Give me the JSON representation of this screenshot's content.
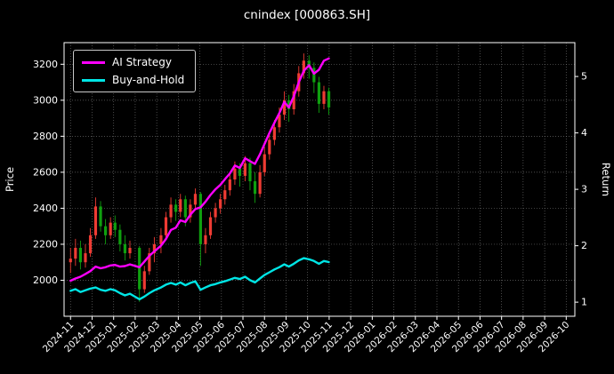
{
  "title": "cnindex [000863.SH]",
  "colors": {
    "background": "#000000",
    "text": "#ffffff",
    "grid": "#8a8a8a",
    "up": "#ef3b33",
    "down": "#0fa00f",
    "ai_line": "#ff00ff",
    "bh_line": "#00e5e5"
  },
  "chart_data": {
    "type": "candlestick+line",
    "title": "cnindex [000863.SH]",
    "ylabel_left": "Price",
    "ylabel_right": "Return",
    "grid": true,
    "legend_position": "upper-left",
    "ylim_left": [
      1800,
      3320
    ],
    "ylim_right": [
      0.75,
      5.6
    ],
    "y_ticks_left": [
      2000,
      2200,
      2400,
      2600,
      2800,
      3000,
      3200
    ],
    "y_ticks_right": [
      1,
      2,
      3,
      4,
      5
    ],
    "x_ticks": [
      "2024-11",
      "2024-12",
      "2025-01",
      "2025-02",
      "2025-03",
      "2025-04",
      "2025-05",
      "2025-06",
      "2025-07",
      "2025-08",
      "2025-09",
      "2025-10",
      "2025-11",
      "2025-12",
      "2026-01",
      "2026-02",
      "2026-03",
      "2026-04",
      "2026-05",
      "2026-06",
      "2026-07",
      "2026-08",
      "2026-09",
      "2026-10"
    ],
    "candles": {
      "axis": "left",
      "dates": [
        "2024-11-01",
        "2024-11-08",
        "2024-11-15",
        "2024-11-22",
        "2024-11-29",
        "2024-12-06",
        "2024-12-13",
        "2024-12-20",
        "2024-12-27",
        "2025-01-03",
        "2025-01-10",
        "2025-01-17",
        "2025-01-24",
        "2025-02-07",
        "2025-02-14",
        "2025-02-21",
        "2025-02-28",
        "2025-03-07",
        "2025-03-14",
        "2025-03-21",
        "2025-03-28",
        "2025-04-04",
        "2025-04-11",
        "2025-04-18",
        "2025-04-25",
        "2025-05-02",
        "2025-05-09",
        "2025-05-16",
        "2025-05-23",
        "2025-05-30",
        "2025-06-06",
        "2025-06-13",
        "2025-06-20",
        "2025-06-27",
        "2025-07-04",
        "2025-07-11",
        "2025-07-18",
        "2025-07-25",
        "2025-08-01",
        "2025-08-08",
        "2025-08-15",
        "2025-08-22",
        "2025-08-29",
        "2025-09-05",
        "2025-09-12",
        "2025-09-19",
        "2025-09-26",
        "2025-10-03",
        "2025-10-10",
        "2025-10-17",
        "2025-10-24",
        "2025-10-31"
      ],
      "open": [
        2100,
        2120,
        2180,
        2100,
        2150,
        2250,
        2410,
        2300,
        2250,
        2320,
        2280,
        2200,
        2150,
        2180,
        1950,
        2050,
        2150,
        2200,
        2250,
        2350,
        2420,
        2380,
        2450,
        2350,
        2420,
        2480,
        2200,
        2250,
        2350,
        2400,
        2450,
        2500,
        2560,
        2620,
        2580,
        2650,
        2550,
        2480,
        2600,
        2700,
        2780,
        2850,
        2920,
        3000,
        2950,
        3050,
        3150,
        3220,
        3180,
        3100,
        2980,
        3050
      ],
      "high": [
        2180,
        2230,
        2220,
        2200,
        2290,
        2460,
        2440,
        2340,
        2350,
        2360,
        2310,
        2250,
        2220,
        2190,
        2080,
        2180,
        2240,
        2290,
        2380,
        2460,
        2450,
        2480,
        2470,
        2450,
        2510,
        2490,
        2290,
        2380,
        2430,
        2480,
        2530,
        2590,
        2660,
        2650,
        2690,
        2680,
        2600,
        2640,
        2740,
        2820,
        2890,
        2960,
        3050,
        3030,
        3090,
        3190,
        3260,
        3250,
        3210,
        3130,
        3080,
        3070
      ],
      "low": [
        2040,
        2080,
        2060,
        2070,
        2130,
        2230,
        2270,
        2200,
        2230,
        2240,
        2160,
        2110,
        2120,
        1880,
        1930,
        2030,
        2100,
        2150,
        2230,
        2320,
        2330,
        2350,
        2300,
        2320,
        2390,
        2080,
        2150,
        2230,
        2320,
        2370,
        2420,
        2470,
        2530,
        2520,
        2550,
        2500,
        2430,
        2460,
        2580,
        2670,
        2750,
        2820,
        2890,
        2880,
        2920,
        3020,
        3120,
        3120,
        3040,
        2930,
        2950,
        2920
      ],
      "close": [
        2120,
        2180,
        2100,
        2150,
        2250,
        2410,
        2300,
        2250,
        2320,
        2280,
        2200,
        2150,
        2180,
        1950,
        2050,
        2150,
        2200,
        2250,
        2350,
        2420,
        2380,
        2450,
        2350,
        2420,
        2480,
        2200,
        2250,
        2350,
        2400,
        2450,
        2500,
        2560,
        2620,
        2580,
        2650,
        2550,
        2480,
        2600,
        2700,
        2780,
        2850,
        2920,
        3000,
        2950,
        3050,
        3150,
        3220,
        3180,
        3100,
        2980,
        3050,
        2960
      ]
    },
    "series": [
      {
        "name": "AI Strategy",
        "axis": "right",
        "color": "#ff00ff",
        "dates": [
          "2024-11-01",
          "2024-11-08",
          "2024-11-15",
          "2024-11-22",
          "2024-11-29",
          "2024-12-06",
          "2024-12-13",
          "2024-12-20",
          "2024-12-27",
          "2025-01-03",
          "2025-01-10",
          "2025-01-17",
          "2025-01-24",
          "2025-02-07",
          "2025-02-14",
          "2025-02-21",
          "2025-02-28",
          "2025-03-07",
          "2025-03-14",
          "2025-03-21",
          "2025-03-28",
          "2025-04-04",
          "2025-04-11",
          "2025-04-18",
          "2025-04-25",
          "2025-05-02",
          "2025-05-09",
          "2025-05-16",
          "2025-05-23",
          "2025-05-30",
          "2025-06-06",
          "2025-06-13",
          "2025-06-20",
          "2025-06-27",
          "2025-07-04",
          "2025-07-11",
          "2025-07-18",
          "2025-07-25",
          "2025-08-01",
          "2025-08-08",
          "2025-08-15",
          "2025-08-22",
          "2025-08-29",
          "2025-09-05",
          "2025-09-12",
          "2025-09-19",
          "2025-09-26",
          "2025-10-03",
          "2025-10-10",
          "2025-10-17",
          "2025-10-24",
          "2025-10-31"
        ],
        "values": [
          1.38,
          1.42,
          1.45,
          1.5,
          1.55,
          1.63,
          1.6,
          1.62,
          1.65,
          1.66,
          1.63,
          1.64,
          1.67,
          1.62,
          1.72,
          1.82,
          1.9,
          2.0,
          2.12,
          2.28,
          2.32,
          2.45,
          2.42,
          2.55,
          2.65,
          2.68,
          2.78,
          2.9,
          3.0,
          3.08,
          3.18,
          3.28,
          3.42,
          3.38,
          3.55,
          3.5,
          3.45,
          3.62,
          3.8,
          4.0,
          4.18,
          4.35,
          4.55,
          4.45,
          4.65,
          4.9,
          5.1,
          5.2,
          5.05,
          5.12,
          5.28,
          5.32
        ]
      },
      {
        "name": "Buy-and-Hold",
        "axis": "right",
        "color": "#00e5e5",
        "dates": [
          "2024-11-01",
          "2024-11-08",
          "2024-11-15",
          "2024-11-22",
          "2024-11-29",
          "2024-12-06",
          "2024-12-13",
          "2024-12-20",
          "2024-12-27",
          "2025-01-03",
          "2025-01-10",
          "2025-01-17",
          "2025-01-24",
          "2025-02-07",
          "2025-02-14",
          "2025-02-21",
          "2025-02-28",
          "2025-03-07",
          "2025-03-14",
          "2025-03-21",
          "2025-03-28",
          "2025-04-04",
          "2025-04-11",
          "2025-04-18",
          "2025-04-25",
          "2025-05-02",
          "2025-05-09",
          "2025-05-16",
          "2025-05-23",
          "2025-05-30",
          "2025-06-06",
          "2025-06-13",
          "2025-06-20",
          "2025-06-27",
          "2025-07-04",
          "2025-07-11",
          "2025-07-18",
          "2025-07-25",
          "2025-08-01",
          "2025-08-08",
          "2025-08-15",
          "2025-08-22",
          "2025-08-29",
          "2025-09-05",
          "2025-09-12",
          "2025-09-19",
          "2025-09-26",
          "2025-10-03",
          "2025-10-10",
          "2025-10-17",
          "2025-10-24",
          "2025-10-31"
        ],
        "values": [
          1.2,
          1.23,
          1.18,
          1.21,
          1.24,
          1.26,
          1.22,
          1.2,
          1.23,
          1.21,
          1.16,
          1.12,
          1.15,
          1.05,
          1.1,
          1.16,
          1.21,
          1.26,
          1.31,
          1.34,
          1.31,
          1.35,
          1.3,
          1.34,
          1.37,
          1.22,
          1.26,
          1.3,
          1.32,
          1.35,
          1.37,
          1.4,
          1.43,
          1.41,
          1.45,
          1.39,
          1.35,
          1.42,
          1.48,
          1.53,
          1.58,
          1.62,
          1.67,
          1.63,
          1.68,
          1.74,
          1.78,
          1.76,
          1.73,
          1.68,
          1.73,
          1.71
        ]
      }
    ]
  }
}
